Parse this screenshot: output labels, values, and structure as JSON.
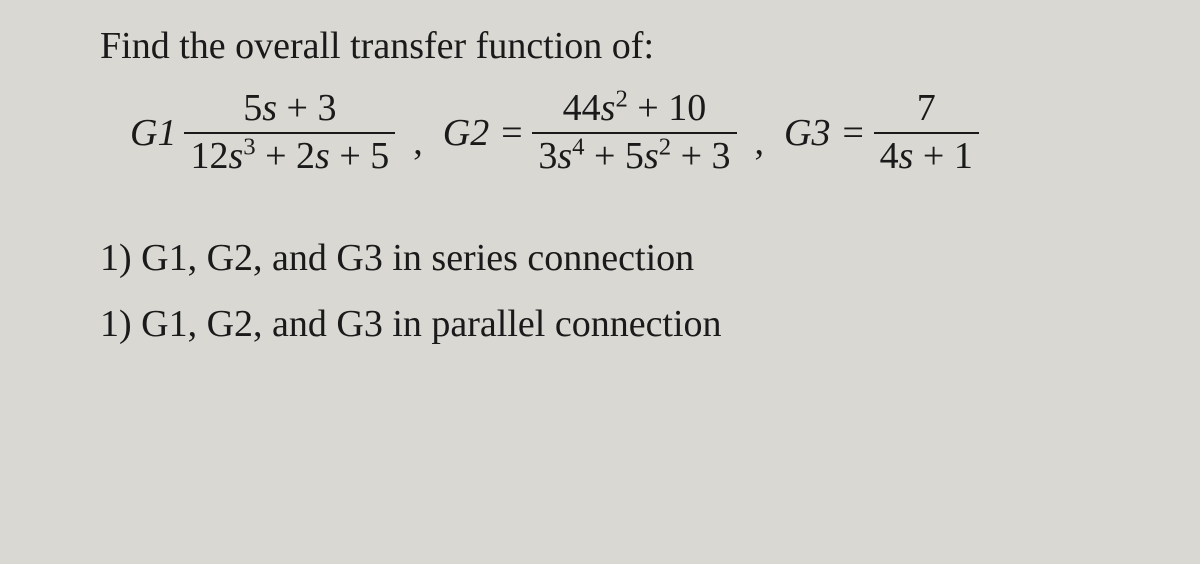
{
  "prompt": "Find the overall transfer function of:",
  "g1": {
    "label": "G1",
    "num_a": "5",
    "num_b": " + 3",
    "den_a": "12",
    "den_b": " + 2",
    "den_c": " + 5"
  },
  "g2": {
    "label": "G2 =",
    "num_a": "44",
    "num_b": " + 10",
    "den_a": "3",
    "den_b": " + 5",
    "den_c": " + 3"
  },
  "g3": {
    "label": "G3 =",
    "num": "7",
    "den_a": "4",
    "den_b": " + 1"
  },
  "q1": "1) G1, G2, and G3 in series connection",
  "q2": "1) G1, G2, and G3 in parallel connection",
  "s": "s",
  "comma": ","
}
